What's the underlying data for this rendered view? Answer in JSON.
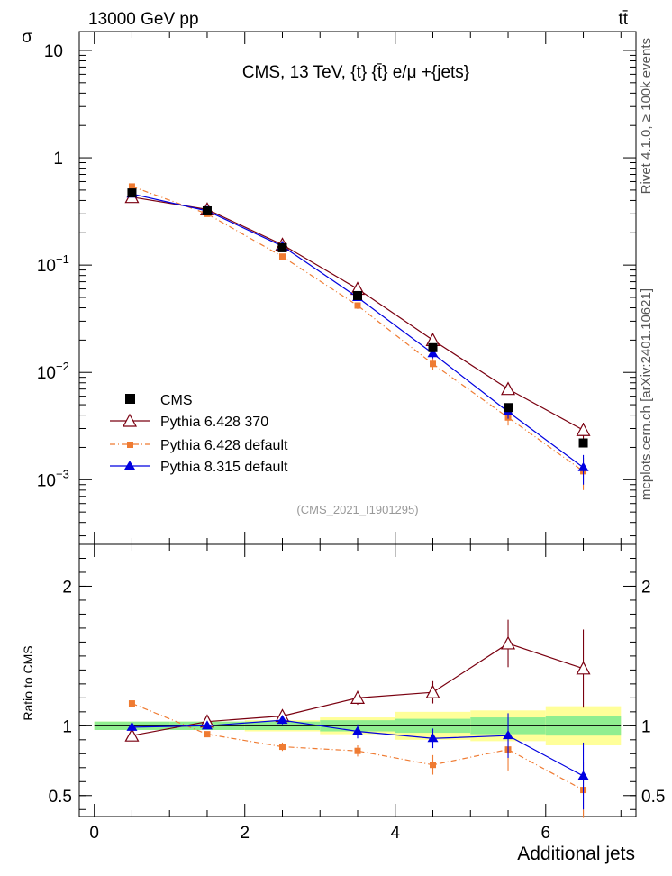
{
  "header": {
    "left": "13000 GeV pp",
    "right": "tt̄"
  },
  "side_label": {
    "top": "Rivet 4.1.0, ≥ 100k events",
    "bottom": "mcplots.cern.ch [arXiv:2401.10621]"
  },
  "colors": {
    "cms": "#000000",
    "py6_370": "#7a0010",
    "py6_def": "#ef7b32",
    "py8": "#0000e0",
    "band_stat": "#90ee90",
    "band_tot": "#ffff99"
  },
  "chart_data": [
    {
      "type": "line",
      "title": "CMS, 13 TeV, {t} {t̄} e/μ +{jets}",
      "ylabel": "σ",
      "xlabel": "",
      "yscale": "log",
      "ylim": [
        0.00025,
        15
      ],
      "xlim": [
        -0.2,
        7.2
      ],
      "yticks": [
        {
          "v": 10,
          "base": "10",
          "exp": ""
        },
        {
          "v": 1,
          "base": "1",
          "exp": ""
        },
        {
          "v": 0.1,
          "base": "10",
          "exp": "−1"
        },
        {
          "v": 0.01,
          "base": "10",
          "exp": "−2"
        },
        {
          "v": 0.001,
          "base": "10",
          "exp": "−3"
        }
      ],
      "watermark": "(CMS_2021_I1901295)",
      "legend_position": "bottom-left",
      "x": [
        0.5,
        1.5,
        2.5,
        3.5,
        4.5,
        5.5,
        6.5
      ],
      "series": [
        {
          "name": "CMS",
          "marker": "square",
          "values": [
            0.47,
            0.32,
            0.145,
            0.052,
            0.017,
            0.0047,
            0.0022
          ],
          "err": [
            0.0,
            0.0,
            0.0,
            0.0,
            0.0,
            0.0,
            0.0
          ]
        },
        {
          "name": "Pythia 6.428 370",
          "marker": "triangle-open",
          "values": [
            0.43,
            0.33,
            0.155,
            0.06,
            0.02,
            0.007,
            0.0029
          ],
          "err": [
            0.0,
            0.0,
            0.0,
            0.004,
            0.0015,
            0.0008,
            0.0005
          ]
        },
        {
          "name": "Pythia 6.428 default",
          "marker": "square-small",
          "dashed": true,
          "values": [
            0.54,
            0.3,
            0.12,
            0.042,
            0.012,
            0.0038,
            0.0012
          ],
          "err": [
            0.0,
            0.0,
            0.0,
            0.003,
            0.0015,
            0.0006,
            0.0004
          ]
        },
        {
          "name": "Pythia 8.315 default",
          "marker": "triangle-filled",
          "values": [
            0.46,
            0.32,
            0.15,
            0.05,
            0.015,
            0.0043,
            0.0013
          ],
          "err": [
            0.0,
            0.0,
            0.0,
            0.003,
            0.0015,
            0.0006,
            0.0004
          ]
        }
      ]
    },
    {
      "type": "line",
      "title": "",
      "ylabel": "Ratio to CMS",
      "xlabel": "Additional jets",
      "ylim": [
        0.35,
        2.3
      ],
      "xlim": [
        -0.2,
        7.2
      ],
      "yticks": [
        {
          "v": 2,
          "label": "2"
        },
        {
          "v": 1,
          "label": "1"
        },
        {
          "v": 0.5,
          "label": "0.5"
        }
      ],
      "xticks": [
        0,
        2,
        4,
        6
      ],
      "x": [
        0.5,
        1.5,
        2.5,
        3.5,
        4.5,
        5.5,
        6.5
      ],
      "bands": {
        "edges": [
          0,
          1,
          2,
          3,
          4,
          5,
          6,
          7
        ],
        "stat": [
          0.03,
          0.03,
          0.03,
          0.04,
          0.05,
          0.06,
          0.07
        ],
        "total": [
          0.03,
          0.03,
          0.04,
          0.06,
          0.1,
          0.11,
          0.14
        ]
      },
      "series": [
        {
          "name": "Pythia 6.428 370",
          "marker": "triangle-open",
          "values": [
            0.93,
            1.03,
            1.07,
            1.2,
            1.24,
            1.59,
            1.41
          ],
          "err": [
            0.0,
            0.0,
            0.03,
            0.05,
            0.08,
            0.17,
            0.28
          ]
        },
        {
          "name": "Pythia 6.428 default",
          "marker": "square-small",
          "dashed": true,
          "values": [
            1.16,
            0.94,
            0.85,
            0.82,
            0.72,
            0.83,
            0.54
          ],
          "err": [
            0.0,
            0.02,
            0.03,
            0.04,
            0.07,
            0.15,
            0.2
          ]
        },
        {
          "name": "Pythia 8.315 default",
          "marker": "triangle-filled",
          "values": [
            0.99,
            1.0,
            1.04,
            0.96,
            0.91,
            0.93,
            0.64
          ],
          "err": [
            0.0,
            0.02,
            0.03,
            0.05,
            0.07,
            0.16,
            0.24
          ]
        }
      ]
    }
  ]
}
